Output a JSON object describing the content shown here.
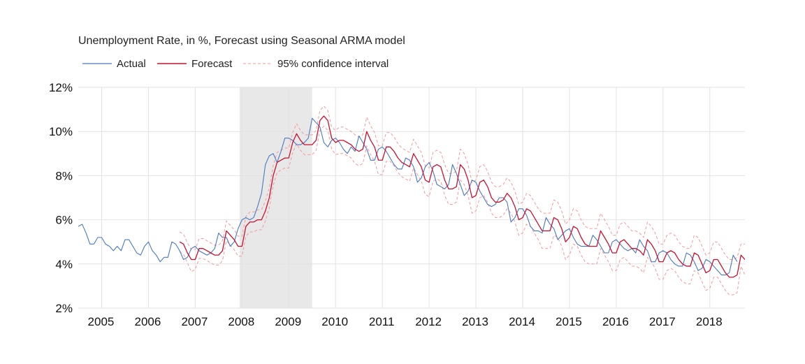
{
  "chart_data": {
    "type": "line",
    "title": "Unemployment Rate, in %, Forecast using Seasonal ARMA model",
    "xlabel": "",
    "ylabel": "",
    "ylim": [
      2,
      12
    ],
    "xlim": [
      2004.5,
      2018.75
    ],
    "y_ticks": [
      2,
      4,
      6,
      8,
      10,
      12
    ],
    "y_tick_labels": [
      "2%",
      "4%",
      "6%",
      "8%",
      "10%",
      "12%"
    ],
    "x_tick_labels": [
      "2005",
      "2006",
      "2007",
      "2008",
      "2009",
      "2010",
      "2011",
      "2012",
      "2013",
      "2014",
      "2015",
      "2016",
      "2017",
      "2018"
    ],
    "grid": true,
    "legend_position": "top-left",
    "recession_band": [
      2007.95,
      2009.5
    ],
    "colors": {
      "actual": "#4a78c0",
      "forecast": "#c8102e",
      "ci": "#f29a9a",
      "band": "#e8e8e8",
      "grid": "#e2e2e2"
    },
    "legend": {
      "actual": "Actual",
      "forecast": "Forecast",
      "ci": "95% confidence interval"
    },
    "series": [
      {
        "name": "Actual",
        "start": 2004.5,
        "step": 0.083333,
        "values": [
          5.7,
          5.8,
          5.4,
          4.9,
          4.9,
          5.2,
          5.2,
          4.9,
          4.8,
          4.6,
          4.8,
          4.6,
          5.1,
          5.1,
          4.8,
          4.5,
          4.4,
          4.8,
          5.0,
          4.6,
          4.4,
          4.1,
          4.3,
          4.3,
          5.0,
          4.9,
          4.6,
          4.2,
          4.3,
          4.7,
          4.8,
          4.6,
          4.5,
          4.4,
          4.5,
          4.7,
          5.4,
          5.2,
          5.2,
          4.8,
          5.0,
          5.6,
          6.0,
          6.1,
          6.0,
          6.1,
          6.6,
          7.2,
          8.5,
          8.9,
          9.0,
          8.6,
          9.1,
          9.7,
          9.7,
          9.6,
          9.4,
          9.4,
          9.5,
          9.7,
          10.6,
          10.4,
          10.2,
          9.5,
          9.3,
          9.6,
          9.7,
          9.5,
          9.2,
          9.0,
          9.3,
          9.1,
          9.8,
          9.5,
          9.2,
          8.7,
          8.7,
          9.2,
          9.3,
          9.1,
          8.8,
          8.5,
          8.3,
          8.3,
          8.8,
          8.7,
          8.4,
          7.7,
          7.9,
          8.4,
          8.6,
          8.2,
          7.6,
          7.5,
          7.4,
          7.6,
          8.5,
          8.1,
          7.6,
          7.1,
          7.3,
          7.8,
          7.7,
          7.3,
          7.0,
          6.7,
          6.6,
          6.7,
          7.0,
          7.0,
          6.8,
          5.9,
          6.1,
          6.5,
          6.5,
          6.2,
          5.7,
          5.5,
          5.5,
          5.4,
          6.1,
          5.8,
          5.6,
          5.1,
          5.3,
          5.5,
          5.6,
          5.2,
          4.9,
          4.8,
          4.8,
          4.8,
          5.3,
          5.1,
          4.8,
          4.5,
          4.5,
          5.0,
          5.1,
          4.9,
          4.7,
          4.6,
          4.7,
          4.5,
          5.1,
          4.8,
          4.6,
          4.1,
          4.1,
          4.5,
          4.6,
          4.5,
          4.2,
          4.0,
          3.9,
          3.9,
          4.5,
          4.4,
          4.1,
          3.7,
          3.8,
          4.2,
          4.1,
          3.9,
          3.7,
          3.5,
          3.5,
          3.6,
          4.4,
          4.1
        ]
      },
      {
        "name": "Forecast",
        "start": 2006.666667,
        "step": 0.083333,
        "values": [
          5.0,
          4.9,
          4.5,
          4.2,
          4.2,
          4.7,
          4.7,
          4.6,
          4.5,
          4.4,
          4.4,
          4.6,
          5.5,
          5.3,
          5.1,
          4.8,
          4.8,
          5.7,
          5.9,
          5.9,
          6.0,
          6.0,
          6.4,
          7.0,
          8.0,
          8.6,
          8.7,
          8.8,
          8.8,
          9.5,
          9.9,
          9.6,
          9.4,
          9.4,
          9.4,
          9.6,
          10.5,
          10.7,
          10.5,
          9.7,
          9.5,
          9.6,
          9.6,
          9.5,
          9.4,
          9.2,
          9.1,
          9.2,
          10.0,
          9.6,
          9.3,
          8.7,
          8.7,
          9.3,
          9.3,
          9.1,
          8.8,
          8.6,
          8.5,
          8.4,
          9.0,
          8.7,
          8.4,
          7.8,
          7.7,
          8.4,
          8.5,
          8.4,
          7.8,
          7.4,
          7.4,
          7.5,
          8.5,
          8.3,
          7.8,
          7.0,
          7.1,
          7.7,
          7.8,
          7.5,
          7.0,
          6.8,
          6.8,
          6.9,
          7.2,
          7.0,
          6.6,
          6.0,
          6.1,
          6.5,
          6.4,
          6.1,
          5.8,
          5.5,
          5.5,
          5.5,
          6.1,
          6.0,
          5.6,
          5.0,
          5.2,
          5.7,
          5.6,
          5.2,
          4.9,
          4.8,
          4.8,
          4.8,
          5.5,
          5.2,
          4.9,
          4.5,
          4.5,
          5.0,
          5.1,
          4.9,
          4.7,
          4.7,
          4.6,
          4.4,
          5.1,
          4.9,
          4.6,
          4.1,
          4.1,
          4.5,
          4.6,
          4.5,
          4.2,
          4.0,
          3.9,
          3.9,
          4.5,
          4.4,
          4.0,
          3.6,
          3.7,
          4.2,
          4.2,
          3.9,
          3.6,
          3.4,
          3.4,
          3.5,
          4.4,
          4.2
        ]
      },
      {
        "name": "95% confidence interval (upper)",
        "start": 2006.666667,
        "step": 0.083333,
        "values": [
          5.45,
          5.35,
          4.95,
          4.65,
          4.65,
          5.15,
          5.15,
          5.05,
          4.95,
          4.85,
          4.85,
          5.05,
          5.95,
          5.75,
          5.55,
          5.25,
          5.25,
          6.15,
          6.35,
          6.35,
          6.45,
          6.45,
          6.85,
          7.45,
          8.45,
          9.05,
          9.15,
          9.25,
          9.25,
          9.95,
          10.35,
          10.05,
          9.85,
          9.85,
          9.85,
          10.05,
          10.95,
          11.15,
          10.95,
          10.2,
          10.05,
          10.2,
          10.2,
          10.1,
          10.0,
          9.85,
          9.75,
          9.85,
          10.65,
          10.25,
          9.95,
          9.35,
          9.35,
          9.95,
          9.95,
          9.75,
          9.45,
          9.25,
          9.15,
          9.05,
          9.65,
          9.35,
          9.05,
          8.45,
          8.35,
          9.05,
          9.15,
          9.05,
          8.5,
          8.1,
          8.1,
          8.2,
          9.2,
          9.0,
          8.5,
          7.7,
          7.8,
          8.4,
          8.5,
          8.2,
          7.7,
          7.5,
          7.5,
          7.6,
          7.9,
          7.7,
          7.3,
          6.7,
          6.8,
          7.2,
          7.1,
          6.8,
          6.5,
          6.3,
          6.3,
          6.3,
          6.9,
          6.8,
          6.4,
          5.8,
          6.0,
          6.5,
          6.4,
          6.0,
          5.7,
          5.6,
          5.6,
          5.6,
          6.3,
          6.0,
          5.7,
          5.3,
          5.3,
          5.8,
          5.9,
          5.7,
          5.5,
          5.5,
          5.4,
          5.2,
          5.9,
          5.7,
          5.4,
          4.9,
          4.9,
          5.3,
          5.4,
          5.3,
          5.0,
          4.8,
          4.7,
          4.7,
          5.3,
          5.2,
          4.8,
          4.4,
          4.5,
          5.0,
          5.0,
          4.7,
          4.4,
          4.2,
          4.2,
          4.3,
          4.9,
          4.9
        ]
      },
      {
        "name": "95% confidence interval (lower)",
        "start": 2006.666667,
        "step": 0.083333,
        "values": [
          4.55,
          4.45,
          4.05,
          3.65,
          3.75,
          4.25,
          4.25,
          4.15,
          4.05,
          3.95,
          3.95,
          4.15,
          5.05,
          4.85,
          4.65,
          4.35,
          4.35,
          5.25,
          5.45,
          5.45,
          5.55,
          5.55,
          5.95,
          6.55,
          7.55,
          8.15,
          8.25,
          8.35,
          8.35,
          9.05,
          9.45,
          9.15,
          8.95,
          8.95,
          8.95,
          9.15,
          10.05,
          10.25,
          10.05,
          9.2,
          8.95,
          9.0,
          9.0,
          8.9,
          8.8,
          8.55,
          8.45,
          8.55,
          9.35,
          8.95,
          8.65,
          8.05,
          8.05,
          8.65,
          8.65,
          8.45,
          8.15,
          7.95,
          7.85,
          7.75,
          8.35,
          8.05,
          7.75,
          7.15,
          7.05,
          7.75,
          7.85,
          7.75,
          7.1,
          6.7,
          6.7,
          6.8,
          7.8,
          7.6,
          7.1,
          6.3,
          6.4,
          7.0,
          7.1,
          6.8,
          6.3,
          6.1,
          6.1,
          6.2,
          6.5,
          6.3,
          5.9,
          5.3,
          5.4,
          5.8,
          5.7,
          5.4,
          5.1,
          4.7,
          4.7,
          4.7,
          5.3,
          5.2,
          4.8,
          4.2,
          4.4,
          4.9,
          4.8,
          4.4,
          4.1,
          4.0,
          4.0,
          4.0,
          4.7,
          4.4,
          4.1,
          3.7,
          3.7,
          4.2,
          4.3,
          4.1,
          3.9,
          3.9,
          3.8,
          3.6,
          4.3,
          4.1,
          3.8,
          3.3,
          3.3,
          3.7,
          3.8,
          3.7,
          3.4,
          3.2,
          3.1,
          3.1,
          3.7,
          3.6,
          3.2,
          2.8,
          2.9,
          3.4,
          3.4,
          3.1,
          2.8,
          2.6,
          2.6,
          2.7,
          3.9,
          3.5
        ]
      }
    ]
  }
}
